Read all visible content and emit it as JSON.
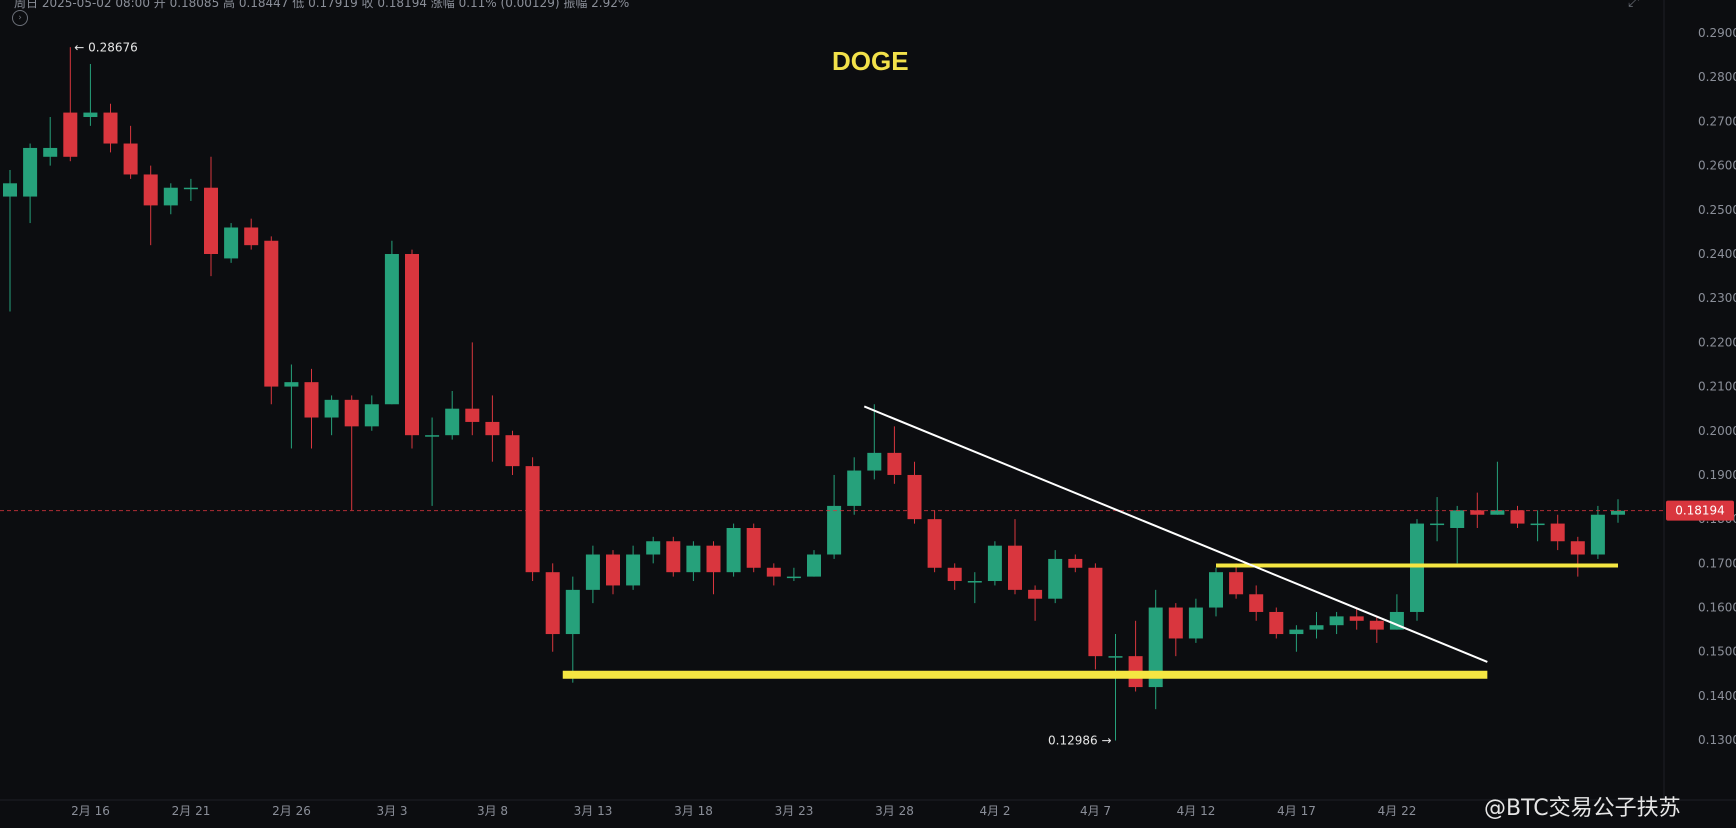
{
  "info_bar": {
    "text": "周日 2025-05-02 08:00  开 0.18085  高 0.18447  低 0.17919  收 0.18194  涨幅 0.11% (0.00129)  振幅 2.92%"
  },
  "title": "DOGE",
  "watermark": "@BTC交易公子扶苏",
  "colors": {
    "up": "#26a17b",
    "down": "#d9363e",
    "background": "#0c0d10",
    "axis_text": "#8b8f99",
    "support_line": "#f5e642",
    "trend_line": "#ffffff",
    "price_line": "#d9363e"
  },
  "chart_data": {
    "type": "candlestick",
    "y_axis": {
      "position": "right",
      "ticks": [
        "0.29000",
        "0.28000",
        "0.27000",
        "0.26000",
        "0.25000",
        "0.24000",
        "0.23000",
        "0.22000",
        "0.21000",
        "0.20000",
        "0.19000",
        "0.18000",
        "0.17000",
        "0.16000",
        "0.15000",
        "0.14000",
        "0.13000"
      ],
      "ylim": [
        0.1255,
        0.2925
      ]
    },
    "x_axis": {
      "ticks": [
        {
          "label": "2月 16",
          "index": 5
        },
        {
          "label": "2月 21",
          "index": 10
        },
        {
          "label": "2月 26",
          "index": 15
        },
        {
          "label": "3月 3",
          "index": 20
        },
        {
          "label": "3月 8",
          "index": 25
        },
        {
          "label": "3月 13",
          "index": 30
        },
        {
          "label": "3月 18",
          "index": 35
        },
        {
          "label": "3月 23",
          "index": 40
        },
        {
          "label": "3月 28",
          "index": 45
        },
        {
          "label": "4月 2",
          "index": 50
        },
        {
          "label": "4月 7",
          "index": 55
        },
        {
          "label": "4月 12",
          "index": 60
        },
        {
          "label": "4月 17",
          "index": 65
        },
        {
          "label": "4月 22",
          "index": 70
        }
      ]
    },
    "candles": [
      [
        0.253,
        0.256,
        0.227,
        0.259
      ],
      [
        0.253,
        0.264,
        0.247,
        0.265
      ],
      [
        0.262,
        0.264,
        0.26,
        0.271
      ],
      [
        0.272,
        0.262,
        0.261,
        0.2868
      ],
      [
        0.271,
        0.272,
        0.269,
        0.283
      ],
      [
        0.272,
        0.265,
        0.263,
        0.274
      ],
      [
        0.265,
        0.258,
        0.257,
        0.269
      ],
      [
        0.258,
        0.251,
        0.242,
        0.26
      ],
      [
        0.251,
        0.255,
        0.249,
        0.256
      ],
      [
        0.255,
        0.255,
        0.252,
        0.257
      ],
      [
        0.255,
        0.24,
        0.235,
        0.262
      ],
      [
        0.239,
        0.246,
        0.238,
        0.247
      ],
      [
        0.246,
        0.242,
        0.241,
        0.248
      ],
      [
        0.243,
        0.21,
        0.206,
        0.244
      ],
      [
        0.21,
        0.211,
        0.196,
        0.215
      ],
      [
        0.211,
        0.203,
        0.196,
        0.214
      ],
      [
        0.203,
        0.207,
        0.199,
        0.208
      ],
      [
        0.207,
        0.201,
        0.182,
        0.208
      ],
      [
        0.201,
        0.206,
        0.2,
        0.208
      ],
      [
        0.206,
        0.24,
        0.206,
        0.243
      ],
      [
        0.24,
        0.199,
        0.196,
        0.241
      ],
      [
        0.199,
        0.199,
        0.183,
        0.203
      ],
      [
        0.199,
        0.205,
        0.198,
        0.209
      ],
      [
        0.205,
        0.202,
        0.199,
        0.22
      ],
      [
        0.202,
        0.199,
        0.193,
        0.208
      ],
      [
        0.199,
        0.192,
        0.19,
        0.2
      ],
      [
        0.192,
        0.168,
        0.166,
        0.194
      ],
      [
        0.168,
        0.154,
        0.15,
        0.17
      ],
      [
        0.154,
        0.164,
        0.143,
        0.167
      ],
      [
        0.164,
        0.172,
        0.161,
        0.174
      ],
      [
        0.172,
        0.165,
        0.163,
        0.173
      ],
      [
        0.165,
        0.172,
        0.164,
        0.174
      ],
      [
        0.172,
        0.175,
        0.17,
        0.176
      ],
      [
        0.175,
        0.168,
        0.167,
        0.176
      ],
      [
        0.168,
        0.174,
        0.166,
        0.175
      ],
      [
        0.174,
        0.168,
        0.163,
        0.175
      ],
      [
        0.168,
        0.178,
        0.167,
        0.179
      ],
      [
        0.178,
        0.169,
        0.168,
        0.179
      ],
      [
        0.169,
        0.167,
        0.165,
        0.17
      ],
      [
        0.167,
        0.167,
        0.166,
        0.169
      ],
      [
        0.167,
        0.172,
        0.167,
        0.173
      ],
      [
        0.172,
        0.183,
        0.171,
        0.19
      ],
      [
        0.183,
        0.191,
        0.181,
        0.194
      ],
      [
        0.191,
        0.195,
        0.189,
        0.206
      ],
      [
        0.195,
        0.19,
        0.188,
        0.201
      ],
      [
        0.19,
        0.18,
        0.179,
        0.193
      ],
      [
        0.18,
        0.169,
        0.168,
        0.182
      ],
      [
        0.169,
        0.166,
        0.164,
        0.17
      ],
      [
        0.166,
        0.166,
        0.161,
        0.168
      ],
      [
        0.166,
        0.174,
        0.165,
        0.175
      ],
      [
        0.174,
        0.164,
        0.163,
        0.18
      ],
      [
        0.164,
        0.162,
        0.157,
        0.165
      ],
      [
        0.162,
        0.171,
        0.161,
        0.173
      ],
      [
        0.171,
        0.169,
        0.168,
        0.172
      ],
      [
        0.169,
        0.149,
        0.146,
        0.17
      ],
      [
        0.149,
        0.149,
        0.1299,
        0.154
      ],
      [
        0.149,
        0.142,
        0.141,
        0.157
      ],
      [
        0.142,
        0.16,
        0.137,
        0.164
      ],
      [
        0.16,
        0.153,
        0.149,
        0.161
      ],
      [
        0.153,
        0.16,
        0.152,
        0.162
      ],
      [
        0.16,
        0.168,
        0.158,
        0.169
      ],
      [
        0.168,
        0.163,
        0.162,
        0.17
      ],
      [
        0.163,
        0.159,
        0.157,
        0.165
      ],
      [
        0.159,
        0.154,
        0.153,
        0.16
      ],
      [
        0.154,
        0.155,
        0.15,
        0.156
      ],
      [
        0.155,
        0.156,
        0.153,
        0.159
      ],
      [
        0.156,
        0.158,
        0.154,
        0.159
      ],
      [
        0.158,
        0.157,
        0.155,
        0.16
      ],
      [
        0.157,
        0.155,
        0.152,
        0.158
      ],
      [
        0.155,
        0.159,
        0.155,
        0.163
      ],
      [
        0.159,
        0.179,
        0.157,
        0.18
      ],
      [
        0.179,
        0.179,
        0.175,
        0.185
      ],
      [
        0.178,
        0.182,
        0.17,
        0.183
      ],
      [
        0.182,
        0.181,
        0.178,
        0.186
      ],
      [
        0.181,
        0.182,
        0.181,
        0.193
      ],
      [
        0.182,
        0.179,
        0.178,
        0.183
      ],
      [
        0.179,
        0.179,
        0.175,
        0.182
      ],
      [
        0.179,
        0.175,
        0.173,
        0.181
      ],
      [
        0.175,
        0.172,
        0.167,
        0.176
      ],
      [
        0.172,
        0.181,
        0.171,
        0.183
      ],
      [
        0.181,
        0.1819,
        0.1792,
        0.1845
      ]
    ],
    "candle_format": [
      "open",
      "close",
      "low",
      "high"
    ],
    "annotations": [
      {
        "text": "← 0.28676",
        "price": 0.28676,
        "index": 3
      },
      {
        "text": "0.12986 →",
        "price": 0.12986,
        "index": 55
      }
    ],
    "last_price": {
      "label": "0.18194",
      "value": 0.18194
    },
    "support_lines": [
      {
        "from_index": 27.5,
        "to_index": 73.5,
        "price": 0.1448,
        "thick": true
      },
      {
        "from_index": 60.0,
        "to_index": 80.0,
        "price": 0.1695,
        "thick": false
      }
    ],
    "trend_line": {
      "from_index": 42.5,
      "from_price": 0.2055,
      "to_index": 73.5,
      "to_price": 0.1477
    }
  }
}
